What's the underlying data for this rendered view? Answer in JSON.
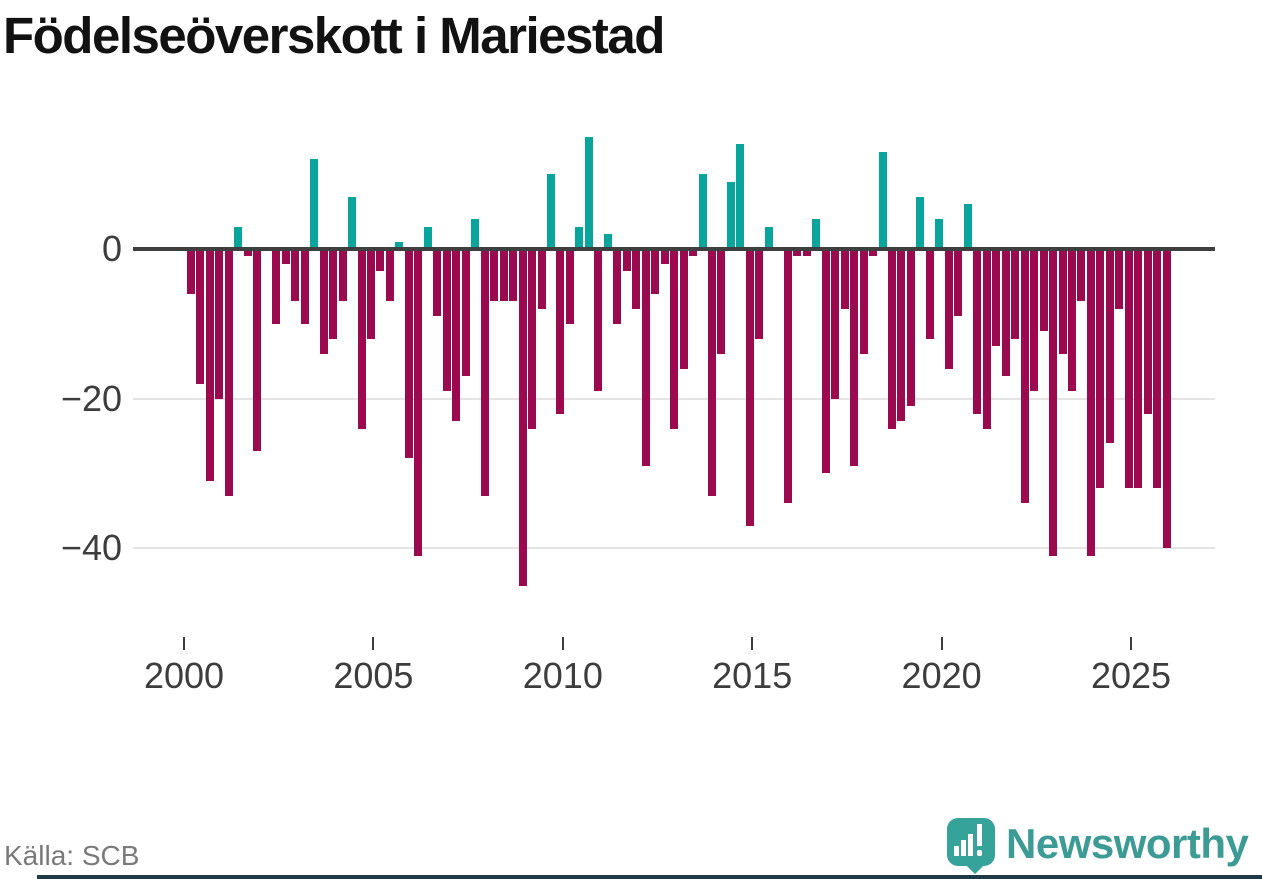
{
  "title": "Födelseöverskott i Mariestad",
  "source_label": "Källa: SCB",
  "brand": {
    "name": "Newsworthy"
  },
  "colors": {
    "positive": "#09a49c",
    "negative": "#9b0a4e",
    "zero_axis": "#3f3f3f",
    "gridline": "#e4e4e4",
    "tick_text": "#3d3d3d",
    "title_text": "#121212",
    "source_text": "#7a7a7a",
    "logo_teal": "#36a39b",
    "brand_text_teal": "#3d9b95",
    "footer_strip": "#1f3a47"
  },
  "chart_data": {
    "type": "bar",
    "title": "Födelseöverskott i Mariestad",
    "frequency": "quarterly",
    "start": "2000 Q1",
    "end": "2025 Q4",
    "xlabel": "",
    "ylabel": "",
    "ylim": [
      -47,
      17
    ],
    "grid": "horizontal",
    "legend": "none",
    "y_ticks": [
      {
        "value": 0,
        "label": "0"
      },
      {
        "value": -20,
        "label": "−20"
      },
      {
        "value": -40,
        "label": "−40"
      }
    ],
    "x_ticks": [
      {
        "year": 2000,
        "label": "2000"
      },
      {
        "year": 2005,
        "label": "2005"
      },
      {
        "year": 2010,
        "label": "2010"
      },
      {
        "year": 2015,
        "label": "2015"
      },
      {
        "year": 2020,
        "label": "2020"
      },
      {
        "year": 2025,
        "label": "2025"
      }
    ],
    "years": [
      {
        "year": 2000,
        "values": [
          -6,
          -18,
          -31,
          -20
        ]
      },
      {
        "year": 2001,
        "values": [
          -33,
          3,
          -1,
          -27
        ]
      },
      {
        "year": 2002,
        "values": [
          0,
          -10,
          -2,
          -7
        ]
      },
      {
        "year": 2003,
        "values": [
          -10,
          12,
          -14,
          -12
        ]
      },
      {
        "year": 2004,
        "values": [
          -7,
          7,
          -24,
          -12
        ]
      },
      {
        "year": 2005,
        "values": [
          -3,
          -7,
          1,
          -28
        ]
      },
      {
        "year": 2006,
        "values": [
          -41,
          3,
          -9,
          -19
        ]
      },
      {
        "year": 2007,
        "values": [
          -23,
          -17,
          4,
          -33
        ]
      },
      {
        "year": 2008,
        "values": [
          -7,
          -7,
          -7,
          -45
        ]
      },
      {
        "year": 2009,
        "values": [
          -24,
          -8,
          10,
          -22
        ]
      },
      {
        "year": 2010,
        "values": [
          -10,
          3,
          15,
          -19
        ]
      },
      {
        "year": 2011,
        "values": [
          2,
          -10,
          -3,
          -8
        ]
      },
      {
        "year": 2012,
        "values": [
          -29,
          -6,
          -2,
          -24
        ]
      },
      {
        "year": 2013,
        "values": [
          -16,
          -1,
          10,
          -33
        ]
      },
      {
        "year": 2014,
        "values": [
          -14,
          9,
          14,
          -37
        ]
      },
      {
        "year": 2015,
        "values": [
          -12,
          3,
          0,
          -34
        ]
      },
      {
        "year": 2016,
        "values": [
          -1,
          -1,
          4,
          -30
        ]
      },
      {
        "year": 2017,
        "values": [
          -20,
          -8,
          -29,
          -14
        ]
      },
      {
        "year": 2018,
        "values": [
          -1,
          13,
          -24,
          -23
        ]
      },
      {
        "year": 2019,
        "values": [
          -21,
          7,
          -12,
          4
        ]
      },
      {
        "year": 2020,
        "values": [
          -16,
          -9,
          6,
          -22
        ]
      },
      {
        "year": 2021,
        "values": [
          -24,
          -13,
          -17,
          -12
        ]
      },
      {
        "year": 2022,
        "values": [
          -34,
          -19,
          -11,
          -41
        ]
      },
      {
        "year": 2023,
        "values": [
          -14,
          -19,
          -7,
          -41
        ]
      },
      {
        "year": 2024,
        "values": [
          -32,
          -26,
          -8,
          -32
        ]
      },
      {
        "year": 2025,
        "values": [
          -32,
          -22,
          -32,
          -40
        ]
      }
    ]
  }
}
